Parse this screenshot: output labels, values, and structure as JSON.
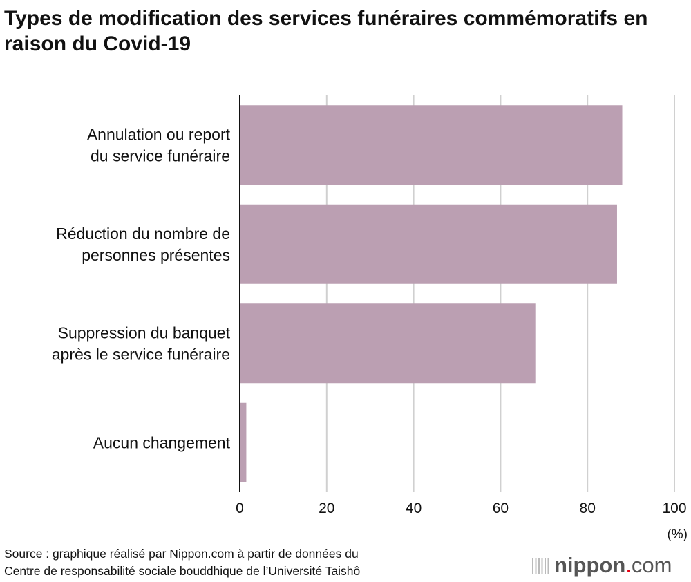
{
  "chart_data": {
    "type": "bar",
    "orientation": "horizontal",
    "title": "Types de modification des services funéraires commémoratifs en raison du Covid-19",
    "categories": [
      [
        "Annulation ou report",
        "du service funéraire"
      ],
      [
        "Réduction du nombre de",
        "personnes présentes"
      ],
      [
        "Suppression du banquet",
        "après le service funéraire"
      ],
      [
        "Aucun changement"
      ]
    ],
    "values": [
      88.0,
      86.8,
      68.0,
      1.5
    ],
    "xlim": [
      0,
      100
    ],
    "xticks": [
      0,
      20,
      40,
      60,
      80,
      100
    ],
    "xunit": "(%)",
    "grid": true,
    "bar_color": "#bb9fb2"
  },
  "source": [
    "Source : graphique réalisé par Nippon.com à partir de données du",
    "Centre de responsabilité sociale bouddhique de l’Université Taishô"
  ],
  "logo": {
    "name": "nippon",
    "dot": ".",
    "suffix": "com"
  }
}
